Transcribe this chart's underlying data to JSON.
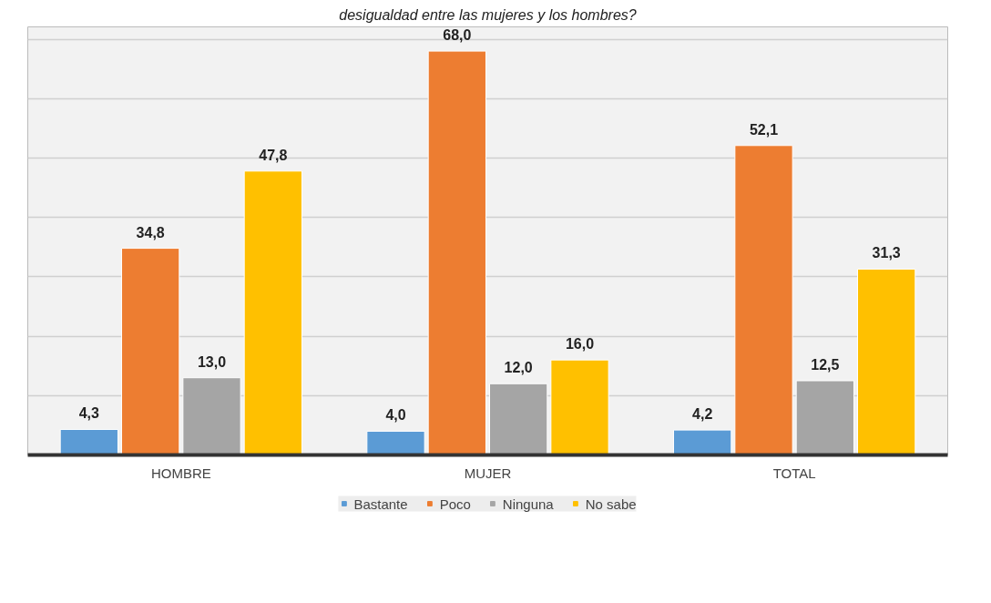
{
  "chart_data": {
    "type": "bar",
    "title": "desigualdad entre las mujeres y los hombres?",
    "categories": [
      "HOMBRE",
      "MUJER",
      "TOTAL"
    ],
    "series": [
      {
        "name": "Bastante",
        "color": "#5b9bd5",
        "values": [
          4.3,
          4.0,
          4.2
        ],
        "value_labels": [
          "4,3",
          "4,0",
          "4,2"
        ]
      },
      {
        "name": "Poco",
        "color": "#ed7d31",
        "values": [
          34.8,
          68.0,
          52.1
        ],
        "value_labels": [
          "34,8",
          "68,0",
          "52,1"
        ]
      },
      {
        "name": "Ninguna",
        "color": "#a5a5a5",
        "values": [
          13.0,
          12.0,
          12.5
        ],
        "value_labels": [
          "13,0",
          "12,0",
          "12,5"
        ]
      },
      {
        "name": "No sabe",
        "color": "#ffc000",
        "values": [
          47.8,
          16.0,
          31.3
        ],
        "value_labels": [
          "47,8",
          "16,0",
          "31,3"
        ]
      }
    ],
    "tick_labels": "x",
    "grid": "y",
    "legend": "bottom"
  }
}
